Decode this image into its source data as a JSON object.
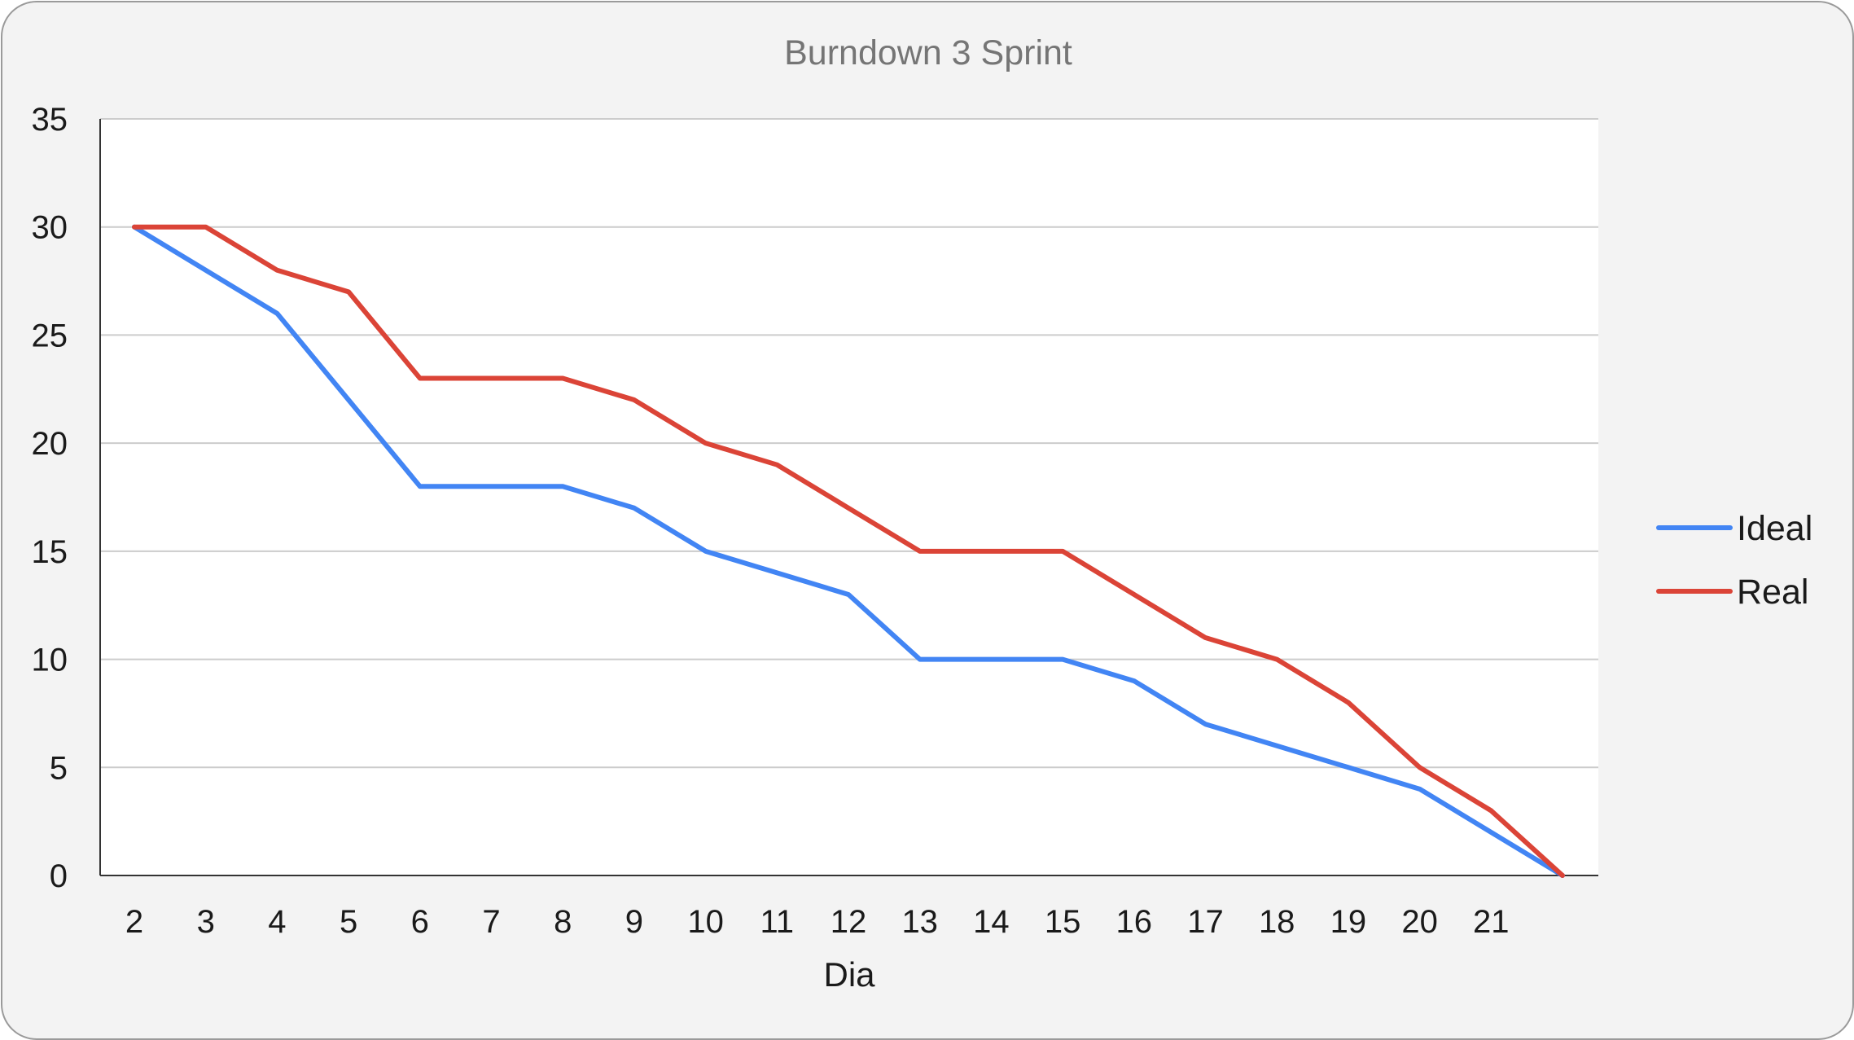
{
  "chart_data": {
    "type": "line",
    "title": "Burndown 3 Sprint",
    "xlabel": "Dia",
    "ylabel": "",
    "ylim": [
      0,
      35
    ],
    "yticks": [
      0,
      5,
      10,
      15,
      20,
      25,
      30,
      35
    ],
    "categories": [
      "2",
      "3",
      "4",
      "5",
      "6",
      "7",
      "8",
      "9",
      "10",
      "11",
      "12",
      "13",
      "14",
      "15",
      "16",
      "17",
      "18",
      "19",
      "20",
      "21",
      ""
    ],
    "grid": true,
    "legend_position": "right",
    "series": [
      {
        "name": "Ideal",
        "color": "#4285f4",
        "values": [
          30,
          28,
          26,
          22,
          18,
          18,
          18,
          17,
          15,
          14,
          13,
          10,
          10,
          10,
          9,
          7,
          6,
          5,
          4,
          2,
          0
        ]
      },
      {
        "name": "Real",
        "color": "#db4437",
        "values": [
          30,
          30,
          28,
          27,
          23,
          23,
          23,
          22,
          20,
          19,
          17,
          15,
          15,
          15,
          13,
          11,
          10,
          8,
          5,
          3,
          0
        ]
      }
    ]
  }
}
